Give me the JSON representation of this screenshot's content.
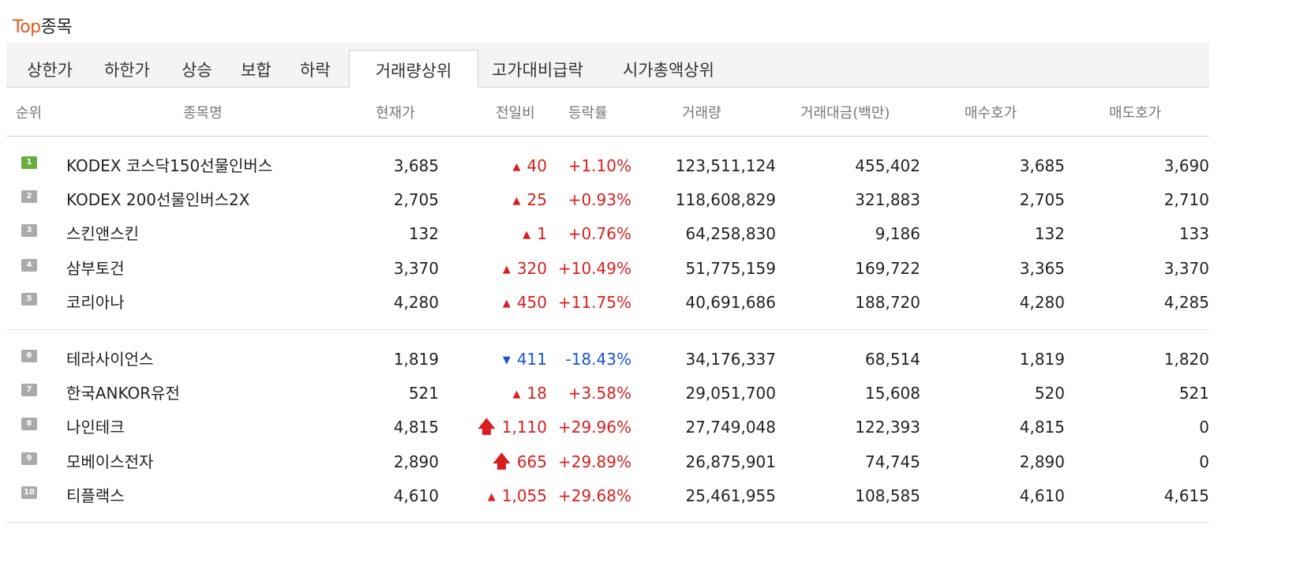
{
  "title": {
    "accent": "Top",
    "rest": "종목"
  },
  "tabs": [
    {
      "label": "상한가"
    },
    {
      "label": "하한가"
    },
    {
      "label": "상승"
    },
    {
      "label": "보합"
    },
    {
      "label": "하락"
    },
    {
      "label": "거래량상위",
      "active": true
    },
    {
      "label": "고가대비급락"
    },
    {
      "label": "시가총액상위"
    }
  ],
  "headers": [
    "순위",
    "종목명",
    "현재가",
    "전일비",
    "등락률",
    "거래량",
    "거래대금(백만)",
    "매수호가",
    "매도호가"
  ],
  "colors": {
    "accent": "#e8581e",
    "up": "#d81f1f",
    "down": "#1a53d6",
    "rank_first": "#6aae3d",
    "rank": "#aaaaaa"
  },
  "rows": [
    {
      "rank": "1",
      "name": "KODEX 코스닥150선물인버스",
      "price": "3,685",
      "change": "40",
      "arrow": "up",
      "rate": "+1.10%",
      "volume": "123,511,124",
      "amount": "455,402",
      "bid": "3,685",
      "ask": "3,690"
    },
    {
      "rank": "2",
      "name": "KODEX 200선물인버스2X",
      "price": "2,705",
      "change": "25",
      "arrow": "up",
      "rate": "+0.93%",
      "volume": "118,608,829",
      "amount": "321,883",
      "bid": "2,705",
      "ask": "2,710"
    },
    {
      "rank": "3",
      "name": "스킨앤스킨",
      "price": "132",
      "change": "1",
      "arrow": "up",
      "rate": "+0.76%",
      "volume": "64,258,830",
      "amount": "9,186",
      "bid": "132",
      "ask": "133"
    },
    {
      "rank": "4",
      "name": "삼부토건",
      "price": "3,370",
      "change": "320",
      "arrow": "up",
      "rate": "+10.49%",
      "volume": "51,775,159",
      "amount": "169,722",
      "bid": "3,365",
      "ask": "3,370"
    },
    {
      "rank": "5",
      "name": "코리아나",
      "price": "4,280",
      "change": "450",
      "arrow": "up",
      "rate": "+11.75%",
      "volume": "40,691,686",
      "amount": "188,720",
      "bid": "4,280",
      "ask": "4,285"
    },
    {
      "rank": "6",
      "name": "테라사이언스",
      "price": "1,819",
      "change": "411",
      "arrow": "down",
      "rate": "-18.43%",
      "volume": "34,176,337",
      "amount": "68,514",
      "bid": "1,819",
      "ask": "1,820"
    },
    {
      "rank": "7",
      "name": "한국ANKOR유전",
      "price": "521",
      "change": "18",
      "arrow": "up",
      "rate": "+3.58%",
      "volume": "29,051,700",
      "amount": "15,608",
      "bid": "520",
      "ask": "521"
    },
    {
      "rank": "8",
      "name": "나인테크",
      "price": "4,815",
      "change": "1,110",
      "arrow": "limit-up",
      "rate": "+29.96%",
      "volume": "27,749,048",
      "amount": "122,393",
      "bid": "4,815",
      "ask": "0"
    },
    {
      "rank": "9",
      "name": "모베이스전자",
      "price": "2,890",
      "change": "665",
      "arrow": "limit-up",
      "rate": "+29.89%",
      "volume": "26,875,901",
      "amount": "74,745",
      "bid": "2,890",
      "ask": "0"
    },
    {
      "rank": "10",
      "name": "티플랙스",
      "price": "4,610",
      "change": "1,055",
      "arrow": "up",
      "rate": "+29.68%",
      "volume": "25,461,955",
      "amount": "108,585",
      "bid": "4,610",
      "ask": "4,615"
    }
  ]
}
